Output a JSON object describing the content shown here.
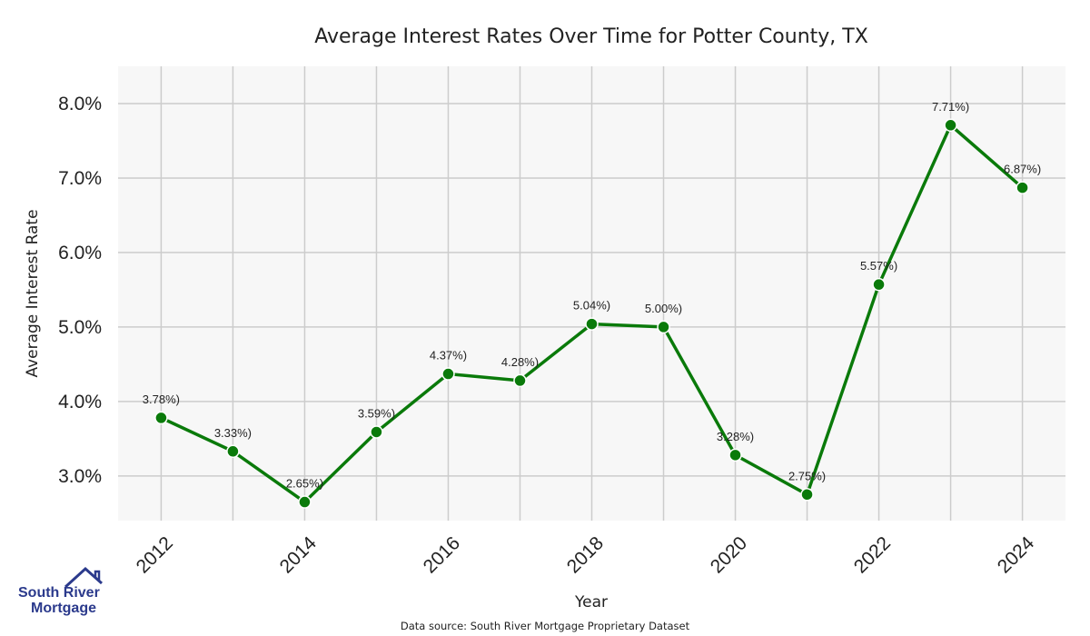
{
  "colors": {
    "line": "#0a7a0a",
    "marker": "#0a7a0a",
    "grid": "#cccccc",
    "plot_bg": "#f7f7f7",
    "brand": "#2b3a8c"
  },
  "logo": {
    "line1": "South River",
    "line2": "Mortgage",
    "icon": "house-icon"
  },
  "source": "Data source: South River Mortgage Proprietary Dataset",
  "chart_data": {
    "type": "line",
    "title": "Average Interest Rates Over Time for Potter County, TX",
    "xlabel": "Year",
    "ylabel": "Average Interest Rate",
    "x": [
      2012,
      2013,
      2014,
      2015,
      2016,
      2017,
      2018,
      2019,
      2020,
      2021,
      2022,
      2023,
      2024
    ],
    "series": [
      {
        "values": [
          3.78,
          3.33,
          2.65,
          3.59,
          4.37,
          4.28,
          5.04,
          5.0,
          3.28,
          2.75,
          5.57,
          7.71,
          6.87
        ],
        "labels": [
          "3.78%)",
          "3.33%)",
          "2.65%)",
          "3.59%)",
          "4.37%)",
          "4.28%)",
          "5.04%)",
          "5.00%)",
          "3.28%)",
          "2.75%)",
          "5.57%)",
          "7.71%)",
          "6.87%)"
        ]
      }
    ],
    "xticks": [
      "2012",
      "2014",
      "2016",
      "2018",
      "2020",
      "2022",
      "2024"
    ],
    "yticks": [
      "3.0%",
      "4.0%",
      "5.0%",
      "6.0%",
      "7.0%",
      "8.0%"
    ],
    "ytick_values": [
      3,
      4,
      5,
      6,
      7,
      8
    ],
    "xlim": [
      2011.4,
      2024.6
    ],
    "ylim": [
      2.4,
      8.5
    ],
    "grid": true
  }
}
